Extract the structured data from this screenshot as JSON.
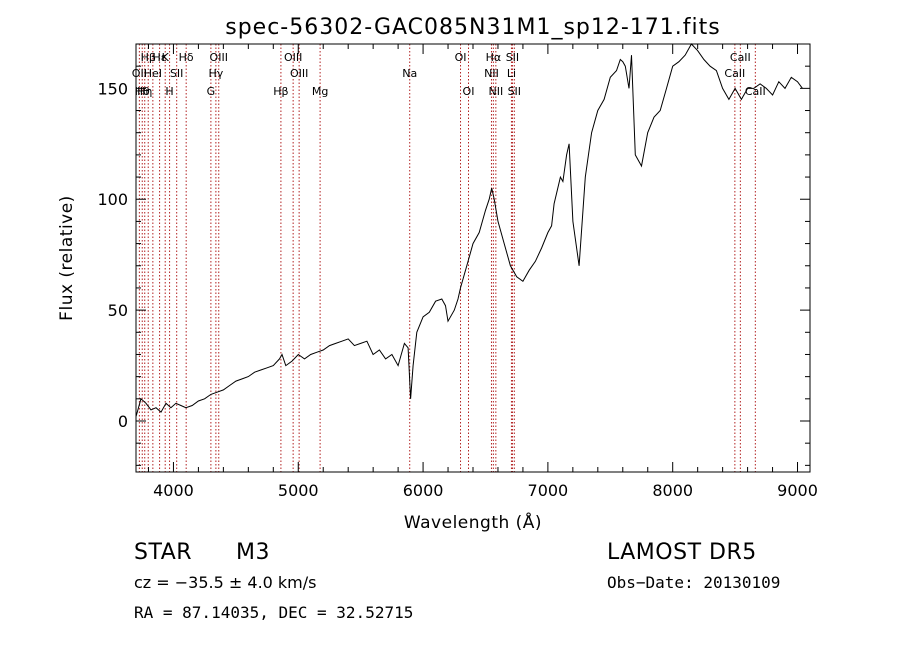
{
  "chart_data": {
    "type": "line",
    "title": "spec-56302-GAC085N31M1_sp12-171.fits",
    "xlabel": "Wavelength (Å)",
    "ylabel": "Flux (relative)",
    "xlim": [
      3700,
      9100
    ],
    "ylim": [
      -23,
      170
    ],
    "xticks": [
      4000,
      5000,
      6000,
      7000,
      8000,
      9000
    ],
    "yticks": [
      0,
      50,
      100,
      150
    ],
    "series": [
      {
        "x": [
          3700,
          3740,
          3780,
          3820,
          3860,
          3900,
          3940,
          3980,
          4020,
          4060,
          4100,
          4150,
          4200,
          4250,
          4300,
          4350,
          4400,
          4450,
          4500,
          4550,
          4600,
          4650,
          4700,
          4750,
          4800,
          4850,
          4870,
          4900,
          4950,
          5000,
          5050,
          5100,
          5150,
          5200,
          5250,
          5300,
          5350,
          5400,
          5450,
          5500,
          5550,
          5600,
          5650,
          5700,
          5750,
          5800,
          5850,
          5880,
          5900,
          5920,
          5950,
          6000,
          6050,
          6100,
          6150,
          6180,
          6200,
          6250,
          6280,
          6300,
          6350,
          6400,
          6450,
          6500,
          6530,
          6550,
          6570,
          6600,
          6650,
          6700,
          6750,
          6800,
          6850,
          6900,
          6950,
          7000,
          7030,
          7050,
          7100,
          7120,
          7150,
          7170,
          7200,
          7250,
          7300,
          7350,
          7400,
          7450,
          7500,
          7550,
          7580,
          7600,
          7620,
          7650,
          7670,
          7700,
          7750,
          7800,
          7850,
          7900,
          7950,
          8000,
          8050,
          8100,
          8150,
          8200,
          8250,
          8300,
          8350,
          8400,
          8450,
          8500,
          8520,
          8550,
          8600,
          8650,
          8700,
          8750,
          8800,
          8850,
          8900,
          8950,
          9000,
          9040
        ],
        "y": [
          2,
          10,
          8,
          5,
          6,
          4,
          8,
          6,
          8,
          7,
          6,
          7,
          9,
          10,
          12,
          13,
          14,
          16,
          18,
          19,
          20,
          22,
          23,
          24,
          25,
          28,
          30,
          25,
          27,
          30,
          28,
          30,
          31,
          32,
          34,
          35,
          36,
          37,
          34,
          35,
          36,
          30,
          32,
          28,
          30,
          25,
          35,
          33,
          10,
          25,
          40,
          47,
          49,
          54,
          55,
          52,
          45,
          50,
          55,
          60,
          70,
          80,
          85,
          95,
          100,
          105,
          100,
          90,
          80,
          70,
          65,
          63,
          68,
          72,
          78,
          85,
          88,
          98,
          110,
          108,
          120,
          125,
          90,
          70,
          110,
          130,
          140,
          145,
          155,
          158,
          163,
          162,
          160,
          150,
          165,
          120,
          115,
          130,
          137,
          140,
          150,
          160,
          162,
          165,
          170,
          167,
          163,
          160,
          158,
          150,
          145,
          150,
          148,
          145,
          150,
          150,
          152,
          150,
          147,
          153,
          150,
          155,
          153,
          150
        ]
      }
    ],
    "line_markers": [
      {
        "wavelength": 3727,
        "label": "OII",
        "row": 2
      },
      {
        "wavelength": 3750,
        "label": "Hθ",
        "row": 3
      },
      {
        "wavelength": 3770,
        "label": "Hη",
        "row": 3
      },
      {
        "wavelength": 3798,
        "label": "Hβ",
        "row": 1
      },
      {
        "wavelength": 3835,
        "label": "HeI",
        "row": 2
      },
      {
        "wavelength": 3889,
        "label": "Hε",
        "row": 1
      },
      {
        "wavelength": 3934,
        "label": "K",
        "row": 1
      },
      {
        "wavelength": 3969,
        "label": "H",
        "row": 3
      },
      {
        "wavelength": 4026,
        "label": "SII",
        "row": 2
      },
      {
        "wavelength": 4102,
        "label": "Hδ",
        "row": 1
      },
      {
        "wavelength": 4300,
        "label": "G",
        "row": 3
      },
      {
        "wavelength": 4340,
        "label": "Hγ",
        "row": 2
      },
      {
        "wavelength": 4363,
        "label": "OIII",
        "row": 1
      },
      {
        "wavelength": 4861,
        "label": "Hβ",
        "row": 3
      },
      {
        "wavelength": 4959,
        "label": "OIII",
        "row": 1
      },
      {
        "wavelength": 5007,
        "label": "OIII",
        "row": 2
      },
      {
        "wavelength": 5175,
        "label": "Mg",
        "row": 3
      },
      {
        "wavelength": 5893,
        "label": "Na",
        "row": 2
      },
      {
        "wavelength": 6300,
        "label": "OI",
        "row": 1
      },
      {
        "wavelength": 6364,
        "label": "OI",
        "row": 3
      },
      {
        "wavelength": 6548,
        "label": "NII",
        "row": 2
      },
      {
        "wavelength": 6563,
        "label": "Hα",
        "row": 1
      },
      {
        "wavelength": 6583,
        "label": "NII",
        "row": 3
      },
      {
        "wavelength": 6708,
        "label": "Li",
        "row": 2
      },
      {
        "wavelength": 6716,
        "label": "SII",
        "row": 1
      },
      {
        "wavelength": 6731,
        "label": "SII",
        "row": 3
      },
      {
        "wavelength": 8498,
        "label": "CaII",
        "row": 2
      },
      {
        "wavelength": 8542,
        "label": "CaII",
        "row": 1
      },
      {
        "wavelength": 8662,
        "label": "CaII",
        "row": 3
      }
    ]
  },
  "info": {
    "object_class": "STAR",
    "subclass": "M3",
    "survey": "LAMOST DR5",
    "cz": "cz = −35.5 ± 4.0 km/s",
    "obs_date": "Obs−Date: 20130109",
    "coords": "RA =  87.14035, DEC =  32.52715"
  },
  "colors": {
    "spectrum": "#000000",
    "marker_line": "#b22222",
    "axis": "#000000"
  }
}
